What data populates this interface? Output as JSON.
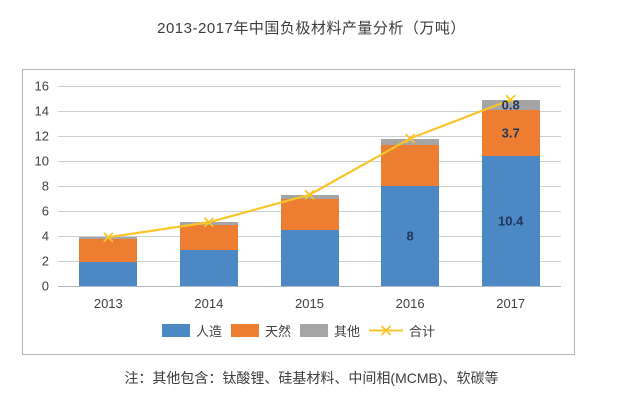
{
  "page": {
    "title": "2013-2017年中国负极材料产量分析（万吨）",
    "footnote": "注：其他包含：钛酸锂、硅基材料、中间相(MCMB)、软碳等"
  },
  "colors": {
    "artificial_blue": "#4c88c4",
    "natural_orange": "#ed7d31",
    "other_gray": "#a5a5a5",
    "total_line_yellow": "#f9c52b",
    "gridline": "#c9ced3",
    "chart_border": "#afb9c1",
    "axis_text": "#414141",
    "data_label_text": "#1e375a"
  },
  "chart_data": {
    "type": "bar",
    "variant": "stacked-columns-with-total-line",
    "title": "2013-2017年中国负极材料产量分析（万吨）",
    "categories": [
      "2013",
      "2014",
      "2015",
      "2016",
      "2017"
    ],
    "series": [
      {
        "name": "人造",
        "kind": "bar",
        "color": "#4c88c4",
        "values": [
          1.9,
          2.9,
          4.5,
          8,
          10.4
        ]
      },
      {
        "name": "天然",
        "kind": "bar",
        "color": "#ed7d31",
        "values": [
          1.9,
          2.0,
          2.5,
          3.3,
          3.7
        ]
      },
      {
        "name": "其他",
        "kind": "bar",
        "color": "#a5a5a5",
        "values": [
          0.1,
          0.2,
          0.3,
          0.5,
          0.8
        ]
      },
      {
        "name": "合计",
        "kind": "line",
        "color": "#f9c52b",
        "values": [
          3.9,
          5.1,
          7.3,
          11.8,
          14.9
        ]
      }
    ],
    "data_labels": [
      {
        "series": 0,
        "category": 3,
        "text": "8"
      },
      {
        "series": 0,
        "category": 4,
        "text": "10.4"
      },
      {
        "series": 1,
        "category": 4,
        "text": "3.7"
      },
      {
        "series": 2,
        "category": 4,
        "text": "0.8"
      }
    ],
    "xlabel": "",
    "ylabel": "",
    "ylim": [
      0,
      16
    ],
    "yticks": [
      0,
      2,
      4,
      6,
      8,
      10,
      12,
      14,
      16
    ],
    "grid": true,
    "legend_position": "bottom",
    "legend": [
      "人造",
      "天然",
      "其他",
      "合计"
    ]
  }
}
